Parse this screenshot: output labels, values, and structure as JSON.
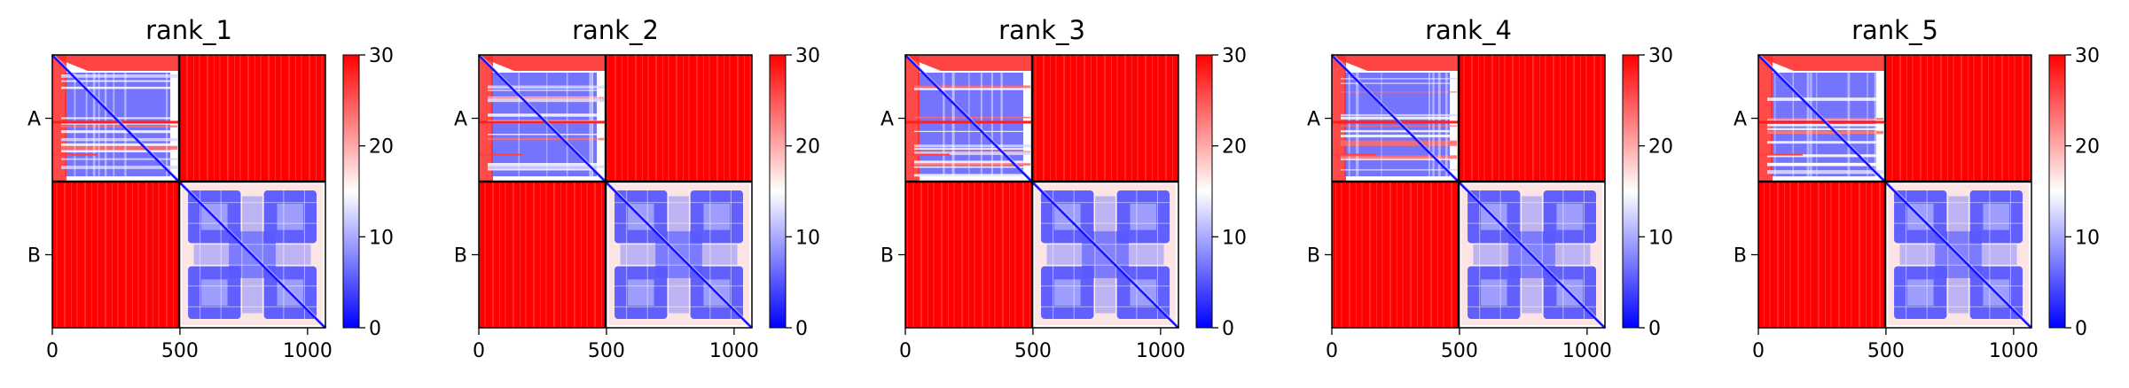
{
  "chart_data": {
    "type": "heatmap",
    "x_range": [
      0,
      1070
    ],
    "chain_boundary": 497,
    "chains": [
      "A",
      "B"
    ],
    "xticks": [
      0,
      500,
      1000
    ],
    "colorbar": {
      "range": [
        0,
        30
      ],
      "ticks": [
        0,
        10,
        20,
        30
      ],
      "colormap": "bwr"
    },
    "colors": {
      "low": "#0000ff",
      "mid": "#ffffff",
      "high": "#ff0000"
    },
    "panels": [
      {
        "title": "rank_1"
      },
      {
        "title": "rank_2"
      },
      {
        "title": "rank_3"
      },
      {
        "title": "rank_4"
      },
      {
        "title": "rank_5"
      }
    ]
  }
}
